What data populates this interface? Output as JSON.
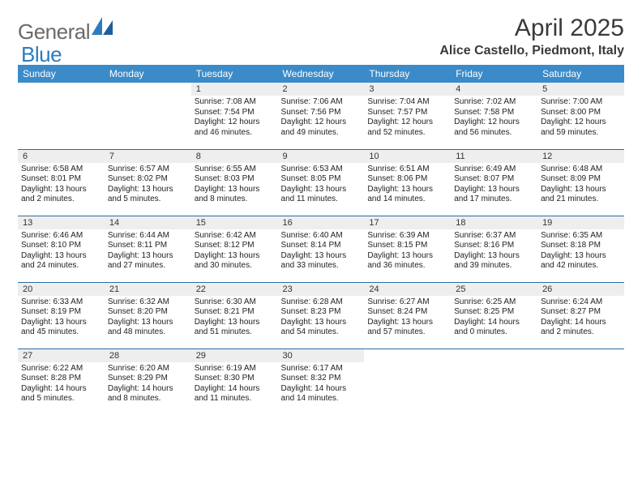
{
  "brand": {
    "text1": "General",
    "text2": "Blue"
  },
  "title": "April 2025",
  "location": "Alice Castello, Piedmont, Italy",
  "colors": {
    "header_bg": "#3b8bc9",
    "header_text": "#ffffff",
    "row_divider": "#2b6aa0",
    "daynum_bg": "#eeeeee",
    "logo_gray": "#6a6a6a",
    "logo_blue": "#2b7cc0"
  },
  "weekdays": [
    "Sunday",
    "Monday",
    "Tuesday",
    "Wednesday",
    "Thursday",
    "Friday",
    "Saturday"
  ],
  "weeks": [
    [
      {
        "empty": true
      },
      {
        "empty": true
      },
      {
        "day": "1",
        "sunrise": "Sunrise: 7:08 AM",
        "sunset": "Sunset: 7:54 PM",
        "daylight1": "Daylight: 12 hours",
        "daylight2": "and 46 minutes."
      },
      {
        "day": "2",
        "sunrise": "Sunrise: 7:06 AM",
        "sunset": "Sunset: 7:56 PM",
        "daylight1": "Daylight: 12 hours",
        "daylight2": "and 49 minutes."
      },
      {
        "day": "3",
        "sunrise": "Sunrise: 7:04 AM",
        "sunset": "Sunset: 7:57 PM",
        "daylight1": "Daylight: 12 hours",
        "daylight2": "and 52 minutes."
      },
      {
        "day": "4",
        "sunrise": "Sunrise: 7:02 AM",
        "sunset": "Sunset: 7:58 PM",
        "daylight1": "Daylight: 12 hours",
        "daylight2": "and 56 minutes."
      },
      {
        "day": "5",
        "sunrise": "Sunrise: 7:00 AM",
        "sunset": "Sunset: 8:00 PM",
        "daylight1": "Daylight: 12 hours",
        "daylight2": "and 59 minutes."
      }
    ],
    [
      {
        "day": "6",
        "sunrise": "Sunrise: 6:58 AM",
        "sunset": "Sunset: 8:01 PM",
        "daylight1": "Daylight: 13 hours",
        "daylight2": "and 2 minutes."
      },
      {
        "day": "7",
        "sunrise": "Sunrise: 6:57 AM",
        "sunset": "Sunset: 8:02 PM",
        "daylight1": "Daylight: 13 hours",
        "daylight2": "and 5 minutes."
      },
      {
        "day": "8",
        "sunrise": "Sunrise: 6:55 AM",
        "sunset": "Sunset: 8:03 PM",
        "daylight1": "Daylight: 13 hours",
        "daylight2": "and 8 minutes."
      },
      {
        "day": "9",
        "sunrise": "Sunrise: 6:53 AM",
        "sunset": "Sunset: 8:05 PM",
        "daylight1": "Daylight: 13 hours",
        "daylight2": "and 11 minutes."
      },
      {
        "day": "10",
        "sunrise": "Sunrise: 6:51 AM",
        "sunset": "Sunset: 8:06 PM",
        "daylight1": "Daylight: 13 hours",
        "daylight2": "and 14 minutes."
      },
      {
        "day": "11",
        "sunrise": "Sunrise: 6:49 AM",
        "sunset": "Sunset: 8:07 PM",
        "daylight1": "Daylight: 13 hours",
        "daylight2": "and 17 minutes."
      },
      {
        "day": "12",
        "sunrise": "Sunrise: 6:48 AM",
        "sunset": "Sunset: 8:09 PM",
        "daylight1": "Daylight: 13 hours",
        "daylight2": "and 21 minutes."
      }
    ],
    [
      {
        "day": "13",
        "sunrise": "Sunrise: 6:46 AM",
        "sunset": "Sunset: 8:10 PM",
        "daylight1": "Daylight: 13 hours",
        "daylight2": "and 24 minutes."
      },
      {
        "day": "14",
        "sunrise": "Sunrise: 6:44 AM",
        "sunset": "Sunset: 8:11 PM",
        "daylight1": "Daylight: 13 hours",
        "daylight2": "and 27 minutes."
      },
      {
        "day": "15",
        "sunrise": "Sunrise: 6:42 AM",
        "sunset": "Sunset: 8:12 PM",
        "daylight1": "Daylight: 13 hours",
        "daylight2": "and 30 minutes."
      },
      {
        "day": "16",
        "sunrise": "Sunrise: 6:40 AM",
        "sunset": "Sunset: 8:14 PM",
        "daylight1": "Daylight: 13 hours",
        "daylight2": "and 33 minutes."
      },
      {
        "day": "17",
        "sunrise": "Sunrise: 6:39 AM",
        "sunset": "Sunset: 8:15 PM",
        "daylight1": "Daylight: 13 hours",
        "daylight2": "and 36 minutes."
      },
      {
        "day": "18",
        "sunrise": "Sunrise: 6:37 AM",
        "sunset": "Sunset: 8:16 PM",
        "daylight1": "Daylight: 13 hours",
        "daylight2": "and 39 minutes."
      },
      {
        "day": "19",
        "sunrise": "Sunrise: 6:35 AM",
        "sunset": "Sunset: 8:18 PM",
        "daylight1": "Daylight: 13 hours",
        "daylight2": "and 42 minutes."
      }
    ],
    [
      {
        "day": "20",
        "sunrise": "Sunrise: 6:33 AM",
        "sunset": "Sunset: 8:19 PM",
        "daylight1": "Daylight: 13 hours",
        "daylight2": "and 45 minutes."
      },
      {
        "day": "21",
        "sunrise": "Sunrise: 6:32 AM",
        "sunset": "Sunset: 8:20 PM",
        "daylight1": "Daylight: 13 hours",
        "daylight2": "and 48 minutes."
      },
      {
        "day": "22",
        "sunrise": "Sunrise: 6:30 AM",
        "sunset": "Sunset: 8:21 PM",
        "daylight1": "Daylight: 13 hours",
        "daylight2": "and 51 minutes."
      },
      {
        "day": "23",
        "sunrise": "Sunrise: 6:28 AM",
        "sunset": "Sunset: 8:23 PM",
        "daylight1": "Daylight: 13 hours",
        "daylight2": "and 54 minutes."
      },
      {
        "day": "24",
        "sunrise": "Sunrise: 6:27 AM",
        "sunset": "Sunset: 8:24 PM",
        "daylight1": "Daylight: 13 hours",
        "daylight2": "and 57 minutes."
      },
      {
        "day": "25",
        "sunrise": "Sunrise: 6:25 AM",
        "sunset": "Sunset: 8:25 PM",
        "daylight1": "Daylight: 14 hours",
        "daylight2": "and 0 minutes."
      },
      {
        "day": "26",
        "sunrise": "Sunrise: 6:24 AM",
        "sunset": "Sunset: 8:27 PM",
        "daylight1": "Daylight: 14 hours",
        "daylight2": "and 2 minutes."
      }
    ],
    [
      {
        "day": "27",
        "sunrise": "Sunrise: 6:22 AM",
        "sunset": "Sunset: 8:28 PM",
        "daylight1": "Daylight: 14 hours",
        "daylight2": "and 5 minutes."
      },
      {
        "day": "28",
        "sunrise": "Sunrise: 6:20 AM",
        "sunset": "Sunset: 8:29 PM",
        "daylight1": "Daylight: 14 hours",
        "daylight2": "and 8 minutes."
      },
      {
        "day": "29",
        "sunrise": "Sunrise: 6:19 AM",
        "sunset": "Sunset: 8:30 PM",
        "daylight1": "Daylight: 14 hours",
        "daylight2": "and 11 minutes."
      },
      {
        "day": "30",
        "sunrise": "Sunrise: 6:17 AM",
        "sunset": "Sunset: 8:32 PM",
        "daylight1": "Daylight: 14 hours",
        "daylight2": "and 14 minutes."
      },
      {
        "empty": true
      },
      {
        "empty": true
      },
      {
        "empty": true
      }
    ]
  ]
}
